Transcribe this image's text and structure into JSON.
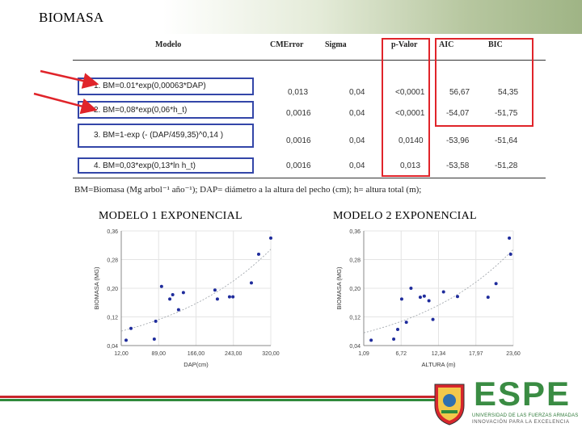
{
  "slide": {
    "title": "BIOMASA"
  },
  "table": {
    "headers": [
      "Modelo",
      "CMError",
      "Sigma",
      "p-Valor",
      "AIC",
      "BIC"
    ],
    "rows": [
      {
        "n": "1.",
        "formula": "BM=0.01*exp(0,00063*DAP)",
        "cmerror": "0,013",
        "sigma": "0,04",
        "pvalor": "<0,0001",
        "aic": "56,67",
        "bic": "54,35"
      },
      {
        "n": "2.",
        "formula": "BM=0,08*exp(0,06*h_t)",
        "cmerror": "0,0016",
        "sigma": "0,04",
        "pvalor": "<0,0001",
        "aic": "-54,07",
        "bic": "-51,75"
      },
      {
        "n": "3.",
        "formula": "BM=1-exp (- (DAP/459,35)^0,14 )",
        "cmerror": "0,0016",
        "sigma": "0,04",
        "pvalor": "0,0140",
        "aic": "-53,96",
        "bic": "-51,64"
      },
      {
        "n": "4.",
        "formula": "BM=0,03*exp(0,13*ln h_t)",
        "cmerror": "0,0016",
        "sigma": "0,04",
        "pvalor": "0,013",
        "aic": "-53,58",
        "bic": "-51,28"
      }
    ],
    "footnote": "BM=Biomasa (Mg arbol⁻¹ año⁻¹); DAP= diámetro a la altura del pecho (cm); h= altura total (m);"
  },
  "colors": {
    "blue_box": "#3346a8",
    "red_box": "#e0242a",
    "point": "#1f2c9c",
    "brand_green": "#3a8c43",
    "brand_red": "#c8262c"
  },
  "chart_data": [
    {
      "type": "scatter",
      "title": "MODELO 1 EXPONENCIAL",
      "xlabel": "DAP(cm)",
      "ylabel": "BIOMASA (MG)",
      "xticks": [
        "12,00",
        "89,00",
        "166,00",
        "243,00",
        "320,00"
      ],
      "yticks": [
        "0,04",
        "0,12",
        "0,20",
        "0,28",
        "0,36"
      ],
      "xlim": [
        12,
        320
      ],
      "ylim": [
        0.04,
        0.36
      ],
      "trend": "exponential",
      "points": [
        {
          "x": 22,
          "y": 0.055
        },
        {
          "x": 32,
          "y": 0.088
        },
        {
          "x": 80,
          "y": 0.058
        },
        {
          "x": 83,
          "y": 0.108
        },
        {
          "x": 95,
          "y": 0.205
        },
        {
          "x": 112,
          "y": 0.17
        },
        {
          "x": 118,
          "y": 0.182
        },
        {
          "x": 130,
          "y": 0.14
        },
        {
          "x": 140,
          "y": 0.188
        },
        {
          "x": 205,
          "y": 0.195
        },
        {
          "x": 210,
          "y": 0.17
        },
        {
          "x": 235,
          "y": 0.176
        },
        {
          "x": 242,
          "y": 0.176
        },
        {
          "x": 280,
          "y": 0.215
        },
        {
          "x": 295,
          "y": 0.295
        },
        {
          "x": 320,
          "y": 0.34
        }
      ]
    },
    {
      "type": "scatter",
      "title": "MODELO 2 EXPONENCIAL",
      "xlabel": "ALTURA (m)",
      "ylabel": "BIOMASA (MG)",
      "xticks": [
        "1,09",
        "6,72",
        "12,34",
        "17,97",
        "23,60"
      ],
      "yticks": [
        "0,04",
        "0,12",
        "0,20",
        "0,28",
        "0,36"
      ],
      "xlim": [
        1.09,
        23.6
      ],
      "ylim": [
        0.04,
        0.36
      ],
      "trend": "exponential",
      "points": [
        {
          "x": 2.2,
          "y": 0.055
        },
        {
          "x": 5.6,
          "y": 0.058
        },
        {
          "x": 6.2,
          "y": 0.085
        },
        {
          "x": 6.8,
          "y": 0.17
        },
        {
          "x": 7.5,
          "y": 0.105
        },
        {
          "x": 8.2,
          "y": 0.2
        },
        {
          "x": 9.6,
          "y": 0.175
        },
        {
          "x": 10.2,
          "y": 0.178
        },
        {
          "x": 10.9,
          "y": 0.165
        },
        {
          "x": 11.5,
          "y": 0.113
        },
        {
          "x": 13.1,
          "y": 0.19
        },
        {
          "x": 15.2,
          "y": 0.177
        },
        {
          "x": 19.8,
          "y": 0.175
        },
        {
          "x": 21.0,
          "y": 0.213
        },
        {
          "x": 23.0,
          "y": 0.34
        },
        {
          "x": 23.2,
          "y": 0.295
        }
      ]
    }
  ],
  "logo": {
    "word": "ESPE",
    "university": "UNIVERSIDAD DE LAS FUERZAS ARMADAS",
    "tagline": "INNOVACIÓN PARA LA EXCELENCIA"
  }
}
